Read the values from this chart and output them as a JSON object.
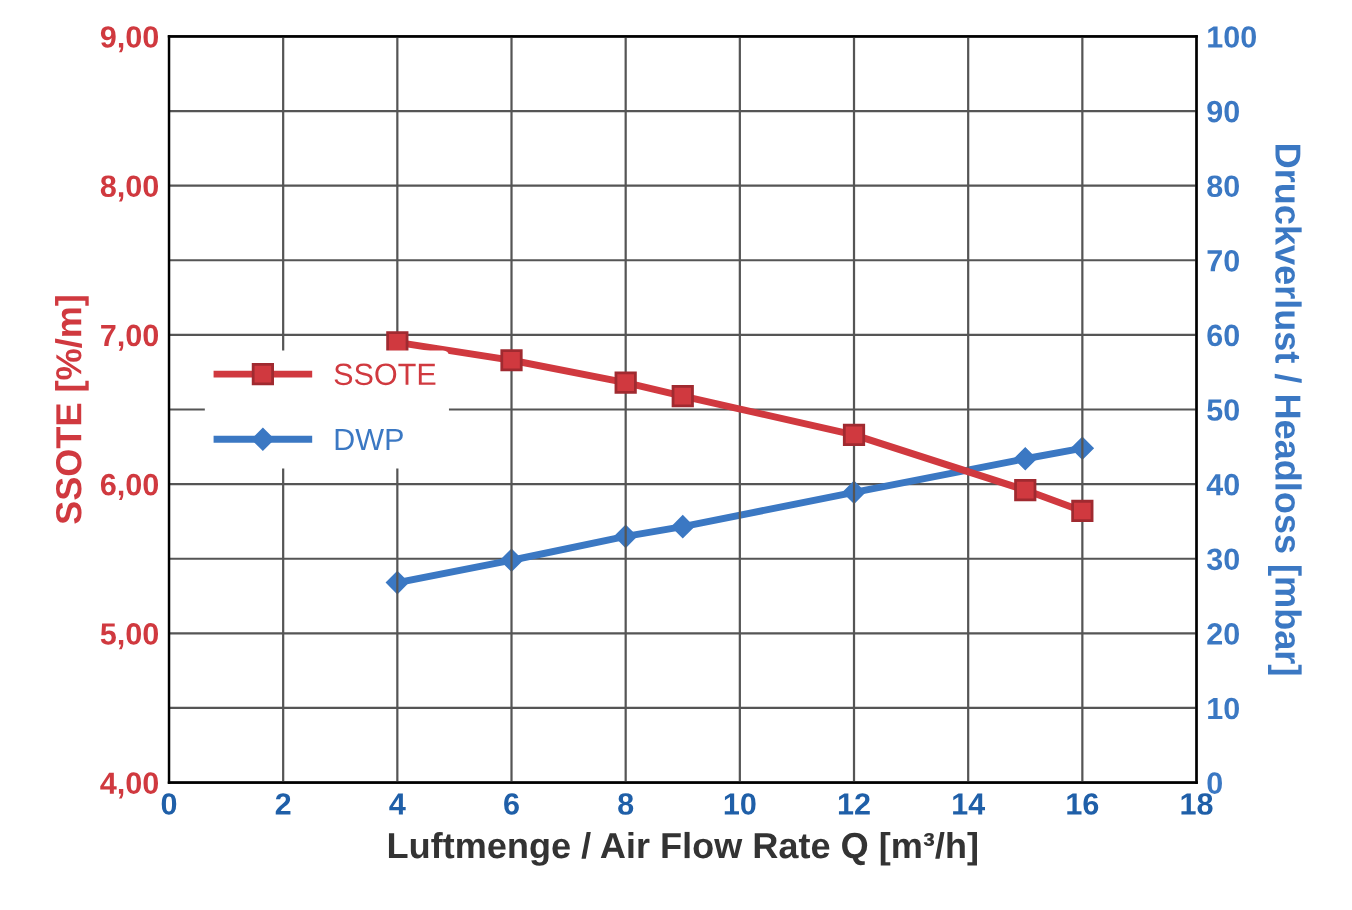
{
  "chart_data": {
    "type": "line",
    "xlabel": "Luftmenge / Air Flow Rate Q [m³/h]",
    "ylabel": "SSOTE [%/m]",
    "y2label": "Druckverlust / Headloss [mbar]",
    "x": [
      4,
      6,
      8,
      9,
      12,
      15,
      16
    ],
    "series": [
      {
        "name": "SSOTE",
        "color": "#d0393f",
        "marker": "square",
        "values": [
          6.95,
          6.83,
          6.68,
          6.59,
          6.33,
          5.96,
          5.82
        ]
      },
      {
        "name": "DWP",
        "color": "#3b78c3",
        "marker": "diamond",
        "axis": "y2",
        "values": [
          26.8,
          29.8,
          33.0,
          34.3,
          38.9,
          43.4,
          44.8
        ]
      }
    ],
    "xlim": [
      0,
      18
    ],
    "xticks": [
      0,
      2,
      4,
      6,
      8,
      10,
      12,
      14,
      16,
      18
    ],
    "ylim": [
      4,
      9
    ],
    "yticks": [
      {
        "value": 4,
        "label": "4,00"
      },
      {
        "value": 5,
        "label": "5,00"
      },
      {
        "value": 6,
        "label": "6,00"
      },
      {
        "value": 7,
        "label": "7,00"
      },
      {
        "value": 8,
        "label": "8,00"
      },
      {
        "value": 9,
        "label": "9,00"
      }
    ],
    "y2lim": [
      0,
      100
    ],
    "y2ticks": [
      0,
      10,
      20,
      30,
      40,
      50,
      60,
      70,
      80,
      90,
      100
    ],
    "grid": true,
    "legend": "left"
  }
}
